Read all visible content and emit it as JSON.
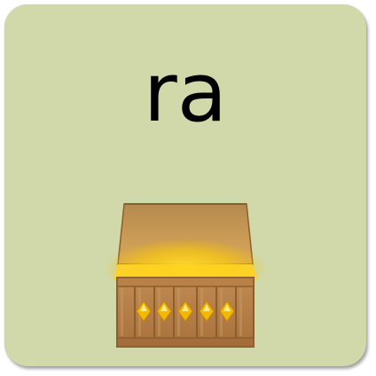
{
  "card": {
    "word": "ra",
    "background_color": "#d1d9aa",
    "image": {
      "icon": "treasure-chest-icon",
      "gem_count": 5,
      "gem_color": "#f5b800",
      "wood_color": "#b07a45"
    }
  }
}
